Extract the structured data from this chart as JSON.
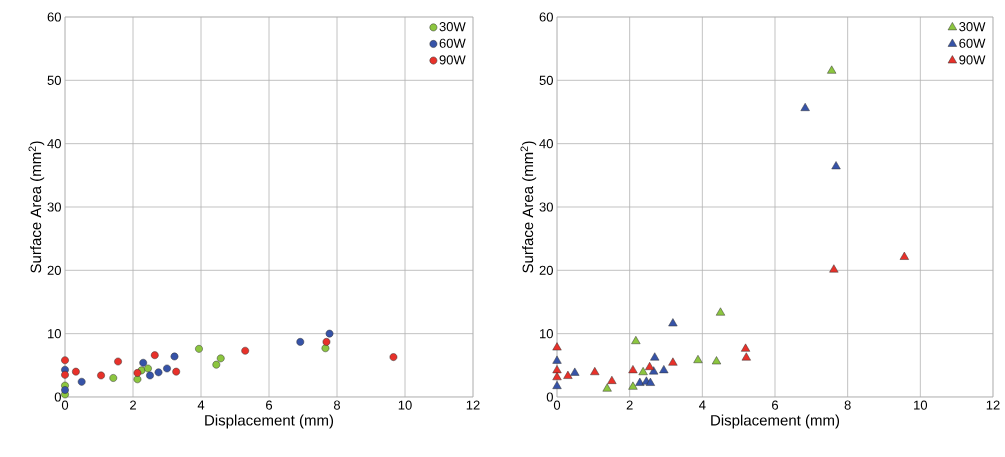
{
  "chart_data": [
    {
      "type": "scatter",
      "xlabel": "Displacement (mm)",
      "ylabel": "Surface Area (mm$^{2}$)",
      "xlim": [
        0,
        12
      ],
      "ylim": [
        0,
        60
      ],
      "xticks": [
        0,
        2,
        4,
        6,
        8,
        10,
        12
      ],
      "yticks": [
        0,
        10,
        20,
        30,
        40,
        50,
        60
      ],
      "grid": true,
      "legend": "top right",
      "marker": "circle",
      "series": [
        {
          "name": "30W",
          "color": "#8cc63f",
          "x": [
            0,
            0,
            1.42,
            2.13,
            2.25,
            2.44,
            3.94,
            4.45,
            4.58,
            7.66
          ],
          "values": [
            0.4,
            1.8,
            3.0,
            2.8,
            4.2,
            4.5,
            7.6,
            5.1,
            6.1,
            7.7
          ]
        },
        {
          "name": "60W",
          "color": "#3653a8",
          "x": [
            0,
            0,
            0.49,
            2.3,
            2.5,
            2.75,
            3.0,
            3.22,
            6.92,
            7.78
          ],
          "values": [
            4.3,
            1.1,
            2.4,
            5.4,
            3.4,
            3.9,
            4.5,
            6.4,
            8.7,
            10.0
          ]
        },
        {
          "name": "90W",
          "color": "#e8312a",
          "x": [
            0,
            0,
            0.32,
            1.06,
            1.56,
            2.13,
            2.64,
            3.27,
            5.3,
            7.69,
            9.66
          ],
          "values": [
            5.8,
            3.5,
            4.0,
            3.4,
            5.6,
            3.8,
            6.6,
            4.0,
            7.3,
            8.7,
            6.3
          ]
        }
      ]
    },
    {
      "type": "scatter",
      "xlabel": "Displacement (mm)",
      "ylabel": "Surface Area (mm$^{2}$)",
      "xlim": [
        0,
        12
      ],
      "ylim": [
        0,
        60
      ],
      "xticks": [
        0,
        2,
        4,
        6,
        8,
        10,
        12
      ],
      "yticks": [
        0,
        10,
        20,
        30,
        40,
        50,
        60
      ],
      "grid": true,
      "legend": "top right",
      "marker": "triangle",
      "series": [
        {
          "name": "30W",
          "color": "#8cc63f",
          "x": [
            2.17,
            1.38,
            2.09,
            2.37,
            3.88,
            4.39,
            4.5,
            7.56
          ],
          "values": [
            8.8,
            1.3,
            1.6,
            3.9,
            5.8,
            5.6,
            13.3,
            51.5
          ]
        },
        {
          "name": "60W",
          "color": "#3653a8",
          "x": [
            0,
            0,
            0.49,
            2.28,
            2.46,
            2.57,
            2.66,
            2.69,
            2.94,
            3.19,
            6.83,
            7.68
          ],
          "values": [
            5.7,
            1.7,
            3.8,
            2.2,
            2.4,
            2.2,
            4.0,
            6.2,
            4.2,
            11.6,
            45.6,
            36.4
          ]
        },
        {
          "name": "90W",
          "color": "#e8312a",
          "x": [
            0,
            0,
            0,
            0.3,
            1.04,
            1.51,
            2.09,
            2.55,
            3.19,
            5.19,
            5.21,
            9.56,
            7.62
          ],
          "values": [
            7.8,
            4.2,
            3.1,
            3.3,
            3.9,
            2.5,
            4.2,
            4.7,
            5.4,
            7.6,
            6.2,
            22.1,
            20.1
          ]
        }
      ]
    }
  ]
}
